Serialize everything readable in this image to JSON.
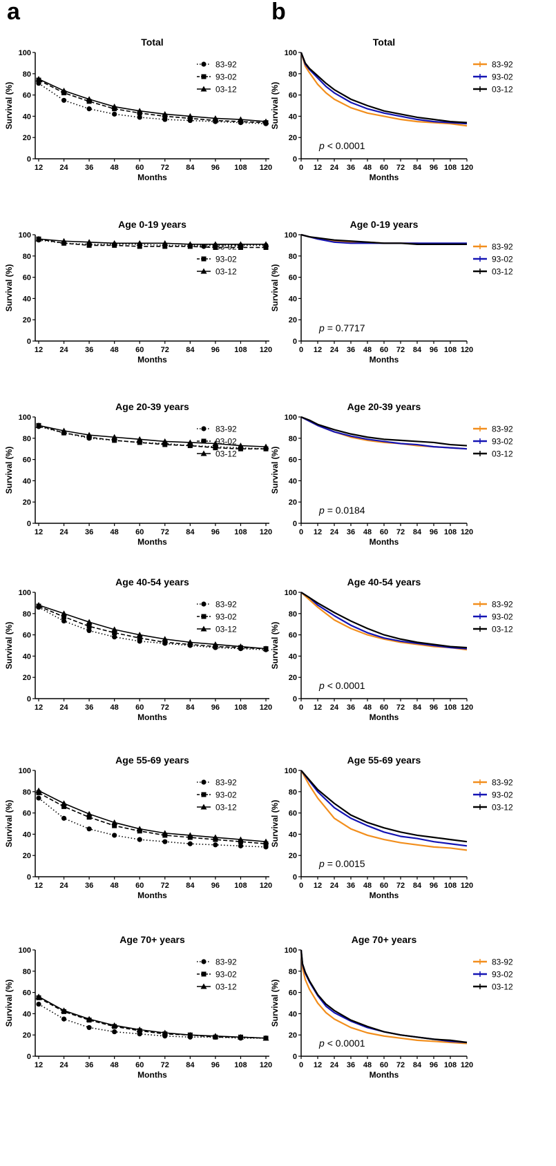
{
  "panel_labels": {
    "left": "a",
    "right": "b"
  },
  "axis_text": {
    "ylabel": "Survival (%)",
    "xlabel": "Months",
    "yticks": [
      "0",
      "20",
      "40",
      "60",
      "80",
      "100"
    ],
    "xticks_a": [
      "12",
      "24",
      "36",
      "48",
      "60",
      "72",
      "84",
      "96",
      "108",
      "120"
    ],
    "xticks_b": [
      "0",
      "12",
      "24",
      "36",
      "48",
      "60",
      "72",
      "84",
      "96",
      "108",
      "120"
    ]
  },
  "legend": [
    "83-92",
    "93-02",
    "03-12"
  ],
  "colors": {
    "83-92": "#f28e1c",
    "93-02": "#1414b4",
    "03-12": "#000000"
  },
  "chart_data": [
    {
      "panel": "a",
      "type": "line",
      "title": "Total",
      "xlabel": "Months",
      "ylabel": "Survival (%)",
      "ylim": [
        0,
        100
      ],
      "xlim": [
        12,
        120
      ],
      "x": [
        12,
        24,
        36,
        48,
        60,
        72,
        84,
        96,
        108,
        120
      ],
      "series": [
        {
          "name": "83-92",
          "marker": "circle",
          "line": "dotted",
          "values": [
            71,
            55,
            47,
            42,
            39,
            37,
            36,
            35,
            34,
            33
          ]
        },
        {
          "name": "93-02",
          "marker": "square",
          "line": "dashed",
          "values": [
            74,
            62,
            54,
            47,
            43,
            40,
            38,
            36,
            35,
            34
          ]
        },
        {
          "name": "03-12",
          "marker": "triangle",
          "line": "solid",
          "values": [
            75,
            64,
            56,
            49,
            45,
            42,
            40,
            38,
            37,
            35
          ]
        }
      ]
    },
    {
      "panel": "b",
      "type": "line",
      "title": "Total",
      "annotation": "< 0.0001",
      "xlabel": "Months",
      "ylabel": "Survival (%)",
      "ylim": [
        0,
        100
      ],
      "xlim": [
        0,
        120
      ],
      "x": [
        0,
        3,
        6,
        12,
        18,
        24,
        36,
        48,
        60,
        72,
        84,
        96,
        108,
        120
      ],
      "series": [
        {
          "name": "83-92",
          "values": [
            100,
            87,
            81,
            70,
            62,
            56,
            48,
            43,
            40,
            37,
            35,
            34,
            33,
            31
          ]
        },
        {
          "name": "93-02",
          "values": [
            100,
            89,
            84,
            76,
            68,
            62,
            53,
            47,
            43,
            40,
            37,
            35,
            34,
            33
          ]
        },
        {
          "name": "03-12",
          "values": [
            100,
            90,
            85,
            78,
            71,
            65,
            56,
            50,
            45,
            42,
            39,
            37,
            35,
            34
          ]
        }
      ]
    },
    {
      "panel": "a",
      "type": "line",
      "title": "Age 0-19 years",
      "xlabel": "Months",
      "ylabel": "Survival (%)",
      "ylim": [
        0,
        100
      ],
      "xlim": [
        12,
        120
      ],
      "x": [
        12,
        24,
        36,
        48,
        60,
        72,
        84,
        96,
        108,
        120
      ],
      "series": [
        {
          "name": "83-92",
          "marker": "circle",
          "line": "dotted",
          "values": [
            95,
            92,
            91,
            91,
            91,
            90,
            90,
            90,
            90,
            90
          ]
        },
        {
          "name": "93-02",
          "marker": "square",
          "line": "dashed",
          "values": [
            96,
            92,
            90,
            90,
            89,
            89,
            89,
            88,
            88,
            88
          ]
        },
        {
          "name": "03-12",
          "marker": "triangle",
          "line": "solid",
          "values": [
            96,
            94,
            93,
            92,
            92,
            92,
            91,
            91,
            91,
            91
          ]
        }
      ]
    },
    {
      "panel": "b",
      "type": "line",
      "title": "Age 0-19 years",
      "annotation": "= 0.7717",
      "xlabel": "Months",
      "ylabel": "Survival (%)",
      "ylim": [
        0,
        100
      ],
      "xlim": [
        0,
        120
      ],
      "x": [
        0,
        6,
        12,
        24,
        36,
        48,
        60,
        72,
        84,
        96,
        108,
        120
      ],
      "series": [
        {
          "name": "83-92",
          "values": [
            100,
            98,
            96,
            94,
            93,
            93,
            92,
            92,
            92,
            91,
            91,
            91
          ]
        },
        {
          "name": "93-02",
          "values": [
            100,
            98,
            96,
            93,
            92,
            92,
            92,
            92,
            92,
            92,
            92,
            92
          ]
        },
        {
          "name": "03-12",
          "values": [
            100,
            98,
            97,
            95,
            94,
            93,
            92,
            92,
            91,
            91,
            91,
            91
          ]
        }
      ]
    },
    {
      "panel": "a",
      "type": "line",
      "title": "Age 20-39 years",
      "xlabel": "Months",
      "ylabel": "Survival (%)",
      "ylim": [
        0,
        100
      ],
      "xlim": [
        12,
        120
      ],
      "x": [
        12,
        24,
        36,
        48,
        60,
        72,
        84,
        96,
        108,
        120
      ],
      "series": [
        {
          "name": "83-92",
          "marker": "circle",
          "line": "dotted",
          "values": [
            91,
            85,
            80,
            78,
            76,
            75,
            73,
            72,
            71,
            70
          ]
        },
        {
          "name": "93-02",
          "marker": "square",
          "line": "dashed",
          "values": [
            92,
            85,
            81,
            78,
            76,
            74,
            73,
            71,
            70,
            70
          ]
        },
        {
          "name": "03-12",
          "marker": "triangle",
          "line": "solid",
          "values": [
            92,
            87,
            83,
            81,
            79,
            77,
            76,
            75,
            73,
            72
          ]
        }
      ]
    },
    {
      "panel": "b",
      "type": "line",
      "title": "Age 20-39 years",
      "annotation": "= 0.0184",
      "xlabel": "Months",
      "ylabel": "Survival (%)",
      "ylim": [
        0,
        100
      ],
      "xlim": [
        0,
        120
      ],
      "x": [
        0,
        6,
        12,
        24,
        36,
        48,
        60,
        72,
        84,
        96,
        108,
        120
      ],
      "series": [
        {
          "name": "83-92",
          "values": [
            100,
            96,
            92,
            86,
            81,
            78,
            76,
            75,
            73,
            72,
            71,
            70
          ]
        },
        {
          "name": "93-02",
          "values": [
            100,
            96,
            92,
            86,
            82,
            79,
            77,
            75,
            74,
            72,
            71,
            70
          ]
        },
        {
          "name": "03-12",
          "values": [
            100,
            97,
            93,
            88,
            84,
            81,
            79,
            78,
            77,
            76,
            74,
            73
          ]
        }
      ]
    },
    {
      "panel": "a",
      "type": "line",
      "title": "Age 40-54 years",
      "xlabel": "Months",
      "ylabel": "Survival (%)",
      "ylim": [
        0,
        100
      ],
      "xlim": [
        12,
        120
      ],
      "x": [
        12,
        24,
        36,
        48,
        60,
        72,
        84,
        96,
        108,
        120
      ],
      "series": [
        {
          "name": "83-92",
          "marker": "circle",
          "line": "dotted",
          "values": [
            86,
            73,
            64,
            58,
            54,
            52,
            50,
            48,
            47,
            46
          ]
        },
        {
          "name": "93-02",
          "marker": "square",
          "line": "dashed",
          "values": [
            87,
            77,
            68,
            62,
            57,
            53,
            51,
            49,
            48,
            47
          ]
        },
        {
          "name": "03-12",
          "marker": "triangle",
          "line": "solid",
          "values": [
            88,
            80,
            72,
            65,
            60,
            56,
            53,
            51,
            49,
            47
          ]
        }
      ]
    },
    {
      "panel": "b",
      "type": "line",
      "title": "Age 40-54 years",
      "annotation": "< 0.0001",
      "xlabel": "Months",
      "ylabel": "Survival (%)",
      "ylim": [
        0,
        100
      ],
      "xlim": [
        0,
        120
      ],
      "x": [
        0,
        6,
        12,
        24,
        36,
        48,
        60,
        72,
        84,
        96,
        108,
        120
      ],
      "series": [
        {
          "name": "83-92",
          "values": [
            100,
            93,
            86,
            74,
            66,
            60,
            56,
            53,
            51,
            49,
            48,
            46
          ]
        },
        {
          "name": "93-02",
          "values": [
            100,
            95,
            88,
            78,
            69,
            62,
            57,
            54,
            52,
            50,
            48,
            47
          ]
        },
        {
          "name": "03-12",
          "values": [
            100,
            95,
            90,
            81,
            73,
            66,
            60,
            56,
            53,
            51,
            49,
            48
          ]
        }
      ]
    },
    {
      "panel": "a",
      "type": "line",
      "title": "Age 55-69 years",
      "xlabel": "Months",
      "ylabel": "Survival (%)",
      "ylim": [
        0,
        100
      ],
      "xlim": [
        12,
        120
      ],
      "x": [
        12,
        24,
        36,
        48,
        60,
        72,
        84,
        96,
        108,
        120
      ],
      "series": [
        {
          "name": "83-92",
          "marker": "circle",
          "line": "dotted",
          "values": [
            74,
            55,
            45,
            39,
            35,
            33,
            31,
            30,
            29,
            28
          ]
        },
        {
          "name": "93-02",
          "marker": "square",
          "line": "dashed",
          "values": [
            79,
            66,
            56,
            48,
            43,
            39,
            37,
            35,
            33,
            31
          ]
        },
        {
          "name": "03-12",
          "marker": "triangle",
          "line": "solid",
          "values": [
            81,
            69,
            59,
            51,
            45,
            41,
            39,
            37,
            35,
            33
          ]
        }
      ]
    },
    {
      "panel": "b",
      "type": "line",
      "title": "Age 55-69 years",
      "annotation": "= 0.0015",
      "xlabel": "Months",
      "ylabel": "Survival (%)",
      "ylim": [
        0,
        100
      ],
      "xlim": [
        0,
        120
      ],
      "x": [
        0,
        6,
        12,
        24,
        36,
        48,
        60,
        72,
        84,
        96,
        108,
        120
      ],
      "series": [
        {
          "name": "83-92",
          "values": [
            100,
            86,
            74,
            55,
            45,
            39,
            35,
            32,
            30,
            28,
            27,
            25
          ]
        },
        {
          "name": "93-02",
          "values": [
            100,
            90,
            80,
            65,
            55,
            48,
            42,
            38,
            36,
            33,
            31,
            29
          ]
        },
        {
          "name": "03-12",
          "values": [
            100,
            91,
            82,
            69,
            58,
            51,
            46,
            42,
            39,
            37,
            35,
            33
          ]
        }
      ]
    },
    {
      "panel": "a",
      "type": "line",
      "title": "Age 70+ years",
      "xlabel": "Months",
      "ylabel": "Survival (%)",
      "ylim": [
        0,
        100
      ],
      "xlim": [
        12,
        120
      ],
      "x": [
        12,
        24,
        36,
        48,
        60,
        72,
        84,
        96,
        108,
        120
      ],
      "series": [
        {
          "name": "83-92",
          "marker": "circle",
          "line": "dotted",
          "values": [
            49,
            35,
            27,
            23,
            21,
            19,
            18,
            18,
            17,
            17
          ]
        },
        {
          "name": "93-02",
          "marker": "square",
          "line": "dashed",
          "values": [
            55,
            42,
            34,
            28,
            24,
            21,
            20,
            18,
            18,
            17
          ]
        },
        {
          "name": "03-12",
          "marker": "triangle",
          "line": "solid",
          "values": [
            56,
            43,
            35,
            29,
            25,
            22,
            20,
            19,
            18,
            17
          ]
        }
      ]
    },
    {
      "panel": "b",
      "type": "line",
      "title": "Age 70+ years",
      "annotation": "< 0.0001",
      "xlabel": "Months",
      "ylabel": "Survival (%)",
      "ylim": [
        0,
        100
      ],
      "xlim": [
        0,
        120
      ],
      "x": [
        0,
        1,
        3,
        6,
        12,
        18,
        24,
        36,
        48,
        60,
        72,
        84,
        96,
        108,
        120
      ],
      "series": [
        {
          "name": "83-92",
          "values": [
            100,
            83,
            72,
            63,
            50,
            41,
            35,
            27,
            22,
            19,
            17,
            15,
            14,
            13,
            12
          ]
        },
        {
          "name": "93-02",
          "values": [
            100,
            86,
            78,
            70,
            57,
            47,
            41,
            33,
            27,
            23,
            20,
            18,
            16,
            14,
            13
          ]
        },
        {
          "name": "03-12",
          "values": [
            100,
            87,
            79,
            71,
            58,
            49,
            43,
            34,
            28,
            23,
            20,
            18,
            16,
            15,
            13
          ]
        }
      ]
    }
  ]
}
